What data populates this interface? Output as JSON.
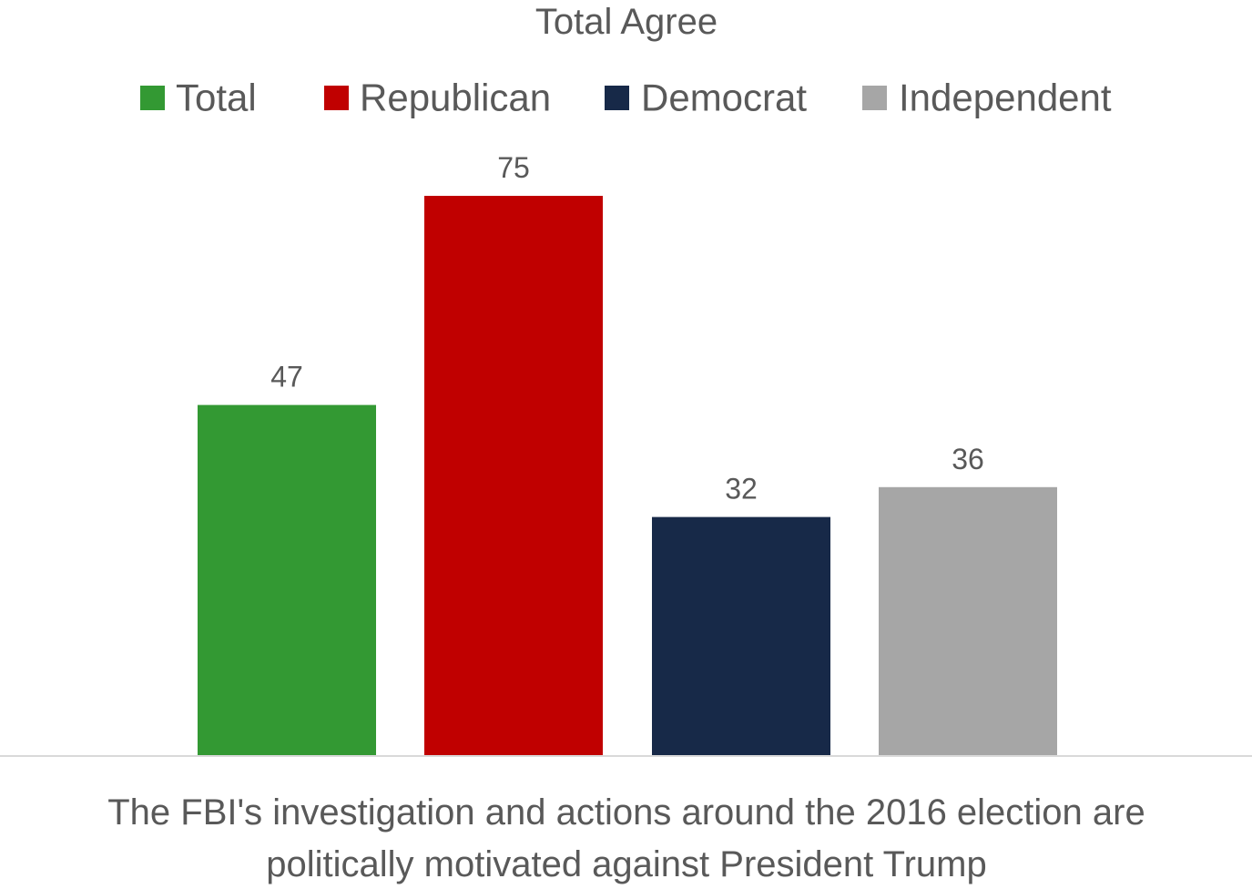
{
  "chart_data": {
    "type": "bar",
    "title": "Total Agree",
    "xlabel": "The FBI's investigation and actions around the 2016 election are politically motivated against President Trump",
    "xlabel_lines": [
      "The FBI's investigation and actions around the 2016 election are",
      "politically motivated against President Trump"
    ],
    "ylabel": "",
    "ylim": [
      0,
      80
    ],
    "grid": false,
    "legend_position": "top",
    "series": [
      {
        "name": "Total",
        "values": [
          47
        ],
        "color": "#339933"
      },
      {
        "name": "Republican",
        "values": [
          75
        ],
        "color": "#C00000"
      },
      {
        "name": "Democrat",
        "values": [
          32
        ],
        "color": "#172948"
      },
      {
        "name": "Independent",
        "values": [
          36
        ],
        "color": "#A6A6A6"
      }
    ],
    "axis_color": "#D9D9D9"
  }
}
